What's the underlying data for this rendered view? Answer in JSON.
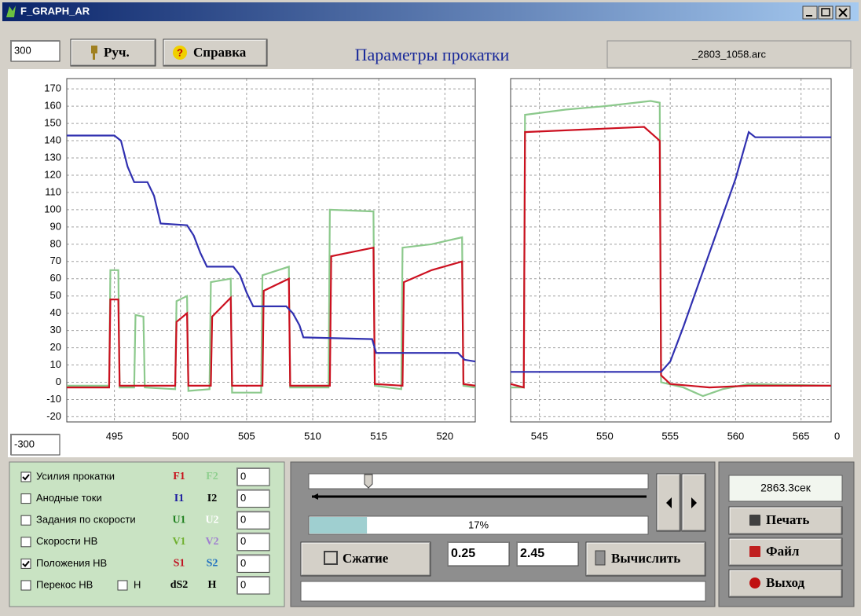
{
  "window": {
    "title": "F_GRAPH_AR"
  },
  "toolbar": {
    "max_input": "300",
    "min_input": "-300",
    "manual_button": "Руч.",
    "help_button": "Справка",
    "heading": "Параметры прокатки",
    "file": "_2803_1058.arc"
  },
  "chart_data": [
    {
      "type": "line",
      "xlim": [
        491.4,
        522.3
      ],
      "ylim": [
        -23,
        176
      ],
      "xticks": [
        495,
        500,
        505,
        510,
        515,
        520
      ],
      "yticks": [
        -20,
        -10,
        0,
        10,
        20,
        30,
        40,
        50,
        60,
        70,
        80,
        90,
        100,
        110,
        120,
        130,
        140,
        150,
        160,
        170
      ],
      "grid": true,
      "show_ytick_labels": true,
      "series": [
        {
          "color": "#8cc98c",
          "x": [
            491.4,
            494.6,
            494.7,
            495.3,
            495.4,
            496.5,
            496.6,
            497.2,
            497.3,
            499.6,
            499.7,
            500.5,
            500.6,
            502.2,
            502.3,
            503.8,
            503.9,
            506.1,
            506.2,
            508.2,
            508.3,
            511.2,
            511.3,
            514.6,
            514.7,
            516.7,
            516.8,
            519,
            521.3,
            521.4,
            522.3
          ],
          "values": [
            -2,
            -2,
            65,
            65,
            -3,
            -3,
            39,
            38,
            -3,
            -4,
            47,
            50,
            -5,
            -4,
            58,
            60,
            -6,
            -6,
            62,
            67,
            -3,
            -3,
            100,
            99,
            -2,
            -4,
            78,
            80,
            84,
            -2,
            -3
          ]
        },
        {
          "color": "#cc1020",
          "x": [
            491.4,
            494.6,
            494.7,
            495.3,
            495.4,
            499.6,
            499.7,
            500.5,
            500.6,
            502.3,
            502.4,
            503.8,
            503.9,
            506.2,
            506.3,
            508.2,
            508.3,
            511.3,
            511.4,
            514.6,
            514.7,
            516.8,
            516.9,
            519,
            521.3,
            521.4,
            522.3
          ],
          "values": [
            -3,
            -3,
            48,
            48,
            -2,
            -2,
            35,
            40,
            -2,
            -2,
            38,
            49,
            -2,
            -2,
            53,
            60,
            -2,
            -2,
            73,
            78,
            -1,
            -2,
            58,
            65,
            70,
            -1,
            -2
          ]
        },
        {
          "color": "#3030b0",
          "x": [
            491.4,
            495,
            495.5,
            496,
            496.5,
            497.5,
            498,
            498.5,
            500.5,
            501,
            501.5,
            502,
            504,
            504.5,
            505,
            505.5,
            508,
            508.5,
            509,
            509.3,
            514.5,
            514.8,
            521,
            521.5,
            522.3
          ],
          "values": [
            143,
            143,
            140,
            125,
            116,
            116,
            108,
            92,
            91,
            85,
            75,
            67,
            67,
            62,
            52,
            44,
            44,
            40,
            33,
            26,
            25,
            17,
            17,
            13,
            12
          ]
        }
      ]
    },
    {
      "type": "line",
      "xlim": [
        542.8,
        567.3
      ],
      "ylim": [
        -23,
        176
      ],
      "xticks": [
        545,
        550,
        555,
        560,
        565
      ],
      "yticks": [
        -20,
        -10,
        0,
        10,
        20,
        30,
        40,
        50,
        60,
        70,
        80,
        90,
        100,
        110,
        120,
        130,
        140,
        150,
        160,
        170
      ],
      "grid": true,
      "show_ytick_labels": false,
      "x_end_label": "0",
      "series": [
        {
          "color": "#8cc98c",
          "x": [
            542.8,
            543.8,
            543.9,
            547,
            550,
            553.5,
            554.2,
            554.3,
            556,
            557.5,
            559,
            561,
            567.3
          ],
          "values": [
            -3,
            -3,
            155,
            158,
            160,
            163,
            162,
            0,
            -3,
            -8,
            -4,
            -1,
            -2
          ]
        },
        {
          "color": "#cc1020",
          "x": [
            542.8,
            543.8,
            543.9,
            547,
            550,
            553,
            554.2,
            554.3,
            555,
            558,
            561,
            567.3
          ],
          "values": [
            -1,
            -3,
            145,
            146,
            147,
            148,
            140,
            4,
            -1,
            -3,
            -2,
            -2
          ]
        },
        {
          "color": "#3030b0",
          "x": [
            542.8,
            554.3,
            555,
            556,
            558,
            560,
            561,
            561.5,
            567.3
          ],
          "values": [
            6,
            6,
            12,
            32,
            75,
            118,
            145,
            142,
            142
          ]
        }
      ]
    }
  ],
  "channels": [
    {
      "label": "Усилия прокатки",
      "checked": true,
      "tags": [
        {
          "text": "F1",
          "color": "#c8101a"
        },
        {
          "text": "F2",
          "color": "#8fcf8f"
        }
      ],
      "value": "0"
    },
    {
      "label": "Анодные токи",
      "checked": false,
      "tags": [
        {
          "text": "I1",
          "color": "#1a1aa0"
        },
        {
          "text": "I2",
          "color": "#000000"
        }
      ],
      "value": "0"
    },
    {
      "label": "Задания по скорости",
      "checked": false,
      "tags": [
        {
          "text": "U1",
          "color": "#208020"
        },
        {
          "text": "U2",
          "color": "#ffffff"
        }
      ],
      "value": "0"
    },
    {
      "label": "Скорости  НВ",
      "checked": false,
      "tags": [
        {
          "text": "V1",
          "color": "#70b030"
        },
        {
          "text": "V2",
          "color": "#a080d0"
        }
      ],
      "value": "0"
    },
    {
      "label": "Положения НВ",
      "checked": true,
      "tags": [
        {
          "text": "S1",
          "color": "#c01020"
        },
        {
          "text": "S2",
          "color": "#2070c0"
        }
      ],
      "value": "0"
    },
    {
      "label": "Перекос НВ",
      "checked": false,
      "extra_check": {
        "label": "Н",
        "checked": false
      },
      "tags": [
        {
          "text": "dS2",
          "color": "#000000"
        },
        {
          "text": "H",
          "color": "#000000"
        }
      ],
      "value": "0"
    }
  ],
  "playback": {
    "progress": {
      "value": 17,
      "label": "17%",
      "range": [
        0,
        100
      ]
    },
    "compress_button": "Сжатие",
    "from": "0.25",
    "to": "2.45",
    "compute_button": "Вычислить"
  },
  "side": {
    "time": "2863.3сек",
    "print_button": "Печать",
    "file_button": "Файл",
    "exit_button": "Выход"
  }
}
